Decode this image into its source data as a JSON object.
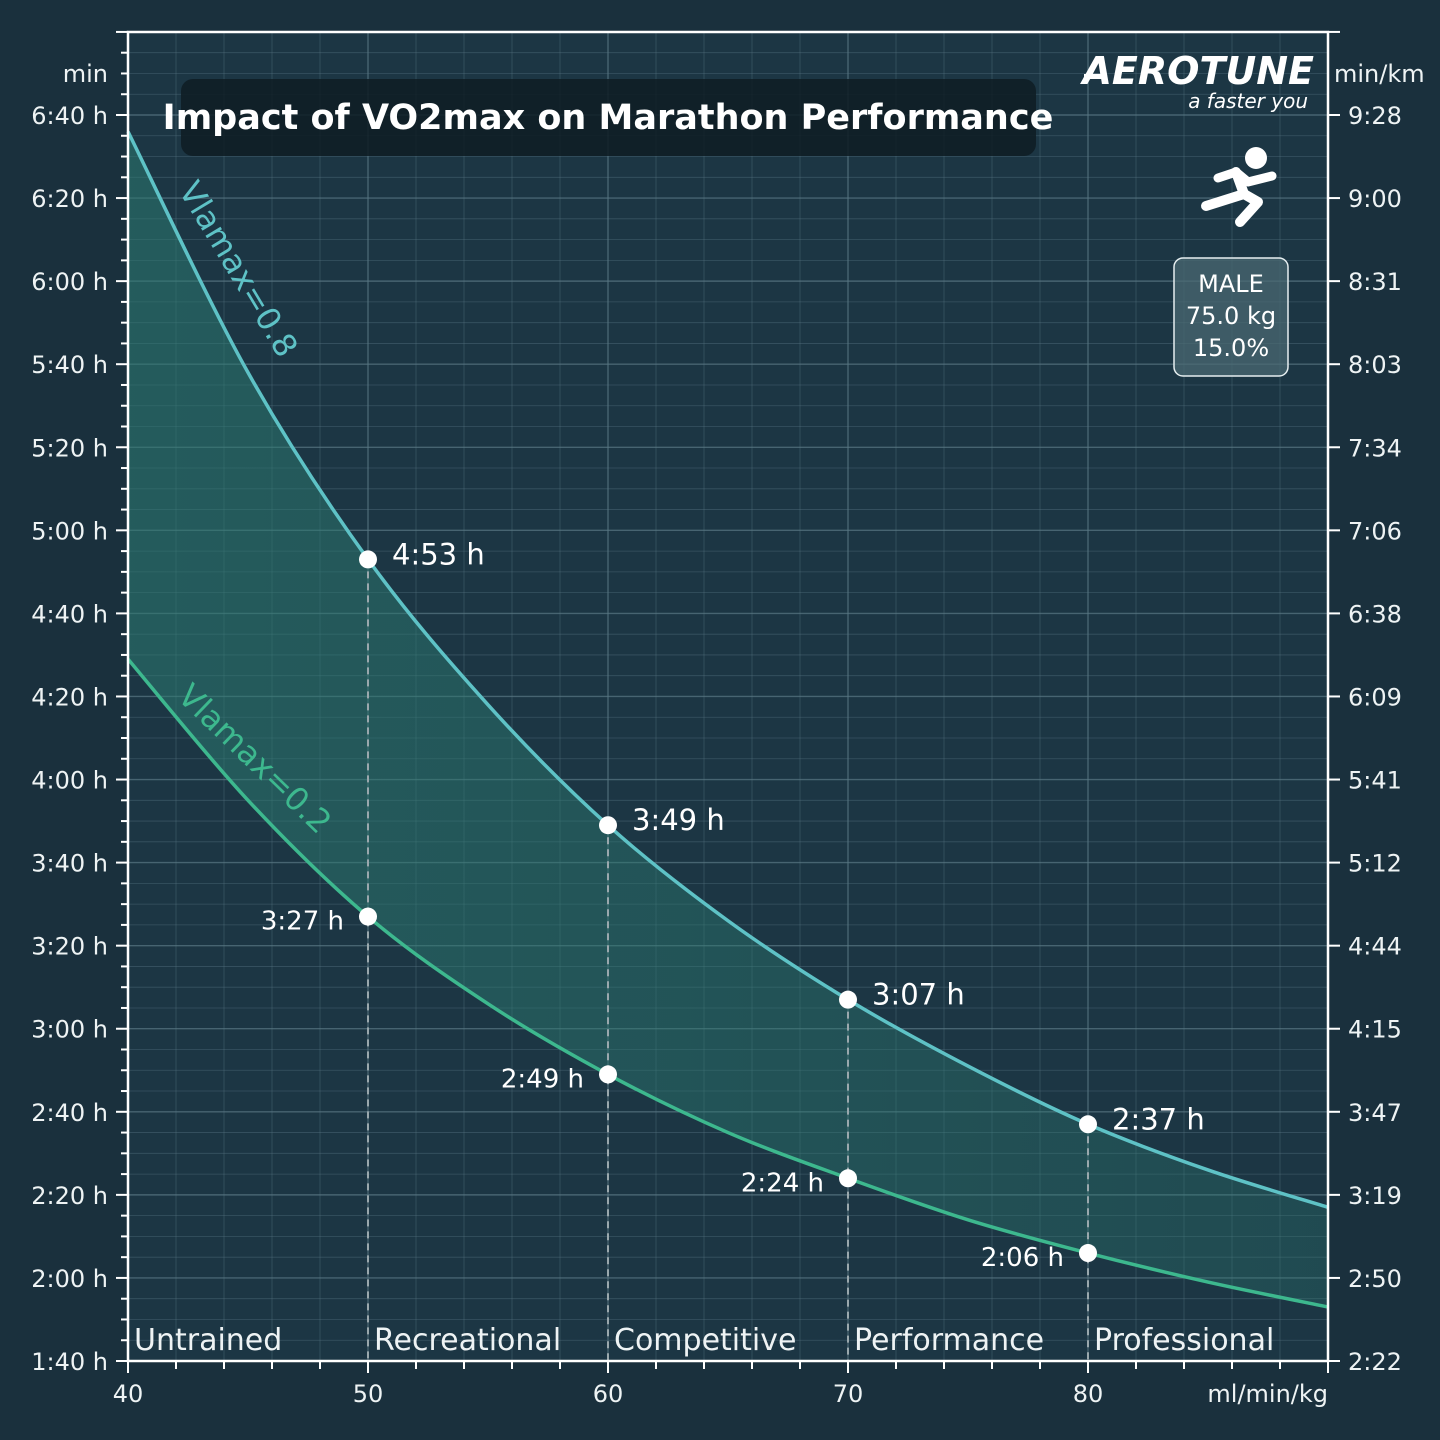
{
  "chart_data": {
    "type": "line",
    "title": "Impact of VO2max on Marathon Performance",
    "xlabel": "ml/min/kg",
    "ylabel": "min",
    "ylabel_right": "min/km",
    "xlim": [
      40,
      90
    ],
    "ylim": [
      100,
      420
    ],
    "grid": true,
    "x_ticks": [
      40,
      50,
      60,
      70,
      80
    ],
    "x_tick_labels": [
      "40",
      "50",
      "60",
      "70",
      "80"
    ],
    "y_ticks": [
      100,
      120,
      140,
      160,
      180,
      200,
      220,
      240,
      260,
      280,
      300,
      320,
      340,
      360,
      380,
      400
    ],
    "y_tick_labels": [
      "1:40 h",
      "2:00 h",
      "2:20 h",
      "2:40 h",
      "3:00 h",
      "3:20 h",
      "3:40 h",
      "4:00 h",
      "4:20 h",
      "4:40 h",
      "5:00 h",
      "5:20 h",
      "5:40 h",
      "6:00 h",
      "6:20 h",
      "6:40 h"
    ],
    "y_right_tick_labels": [
      "2:22",
      "2:50",
      "3:19",
      "3:47",
      "4:15",
      "4:44",
      "5:12",
      "5:41",
      "6:09",
      "6:38",
      "7:06",
      "7:34",
      "8:03",
      "8:31",
      "9:00",
      "9:28"
    ],
    "categories": [
      {
        "label": "Untrained",
        "from": 40
      },
      {
        "label": "Recreational",
        "from": 50
      },
      {
        "label": "Competitive",
        "from": 60
      },
      {
        "label": "Performance",
        "from": 70
      },
      {
        "label": "Professional",
        "from": 80
      }
    ],
    "series": [
      {
        "name": "Vlamax=0.8",
        "color": "#5ec2c6",
        "x": [
          40,
          45,
          50,
          55,
          60,
          65,
          70,
          75,
          80,
          85,
          90
        ],
        "y": [
          396,
          338,
          293,
          258,
          229,
          206,
          187,
          171,
          157,
          146,
          137
        ],
        "markers": [
          {
            "x": 50,
            "y": 293,
            "label": "4:53 h"
          },
          {
            "x": 60,
            "y": 229,
            "label": "3:49 h"
          },
          {
            "x": 70,
            "y": 187,
            "label": "3:07 h"
          },
          {
            "x": 80,
            "y": 157,
            "label": "2:37 h"
          }
        ]
      },
      {
        "name": "Vlamax=0.2",
        "color": "#3db88e",
        "x": [
          40,
          45,
          50,
          55,
          60,
          65,
          70,
          75,
          80,
          85,
          90
        ],
        "y": [
          269,
          235,
          207,
          186,
          169,
          155,
          144,
          134,
          126,
          119,
          113
        ],
        "markers": [
          {
            "x": 50,
            "y": 207,
            "label": "3:27 h"
          },
          {
            "x": 60,
            "y": 169,
            "label": "2:49 h"
          },
          {
            "x": 70,
            "y": 144,
            "label": "2:24 h"
          },
          {
            "x": 80,
            "y": 126,
            "label": "2:06 h"
          }
        ]
      }
    ]
  },
  "brand": {
    "name": "AEROTUNE",
    "tagline": "a faster you",
    "icon": "running-person-icon"
  },
  "profile": {
    "sex": "MALE",
    "weight": "75.0 kg",
    "fat": "15.0%"
  },
  "colors": {
    "background": "#1a303d",
    "fill": "#2a6a66",
    "grid": "#4a6774",
    "axis": "#ffffff"
  }
}
